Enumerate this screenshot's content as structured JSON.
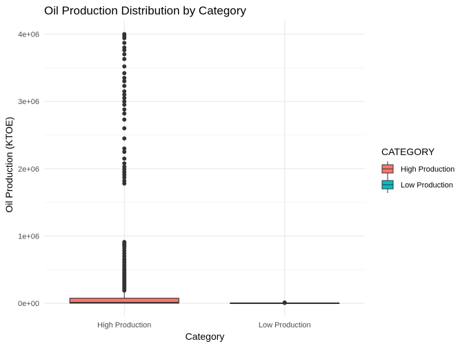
{
  "chart_data": {
    "type": "boxplot",
    "title": "Oil Production Distribution by Category",
    "xlabel": "Category",
    "ylabel": "Oil Production (KTOE)",
    "categories": [
      "High Production",
      "Low Production"
    ],
    "y_ticks": [
      0,
      1000000,
      2000000,
      3000000,
      4000000
    ],
    "y_tick_labels": [
      "0e+00",
      "1e+06",
      "2e+06",
      "3e+06",
      "4e+06"
    ],
    "ylim": [
      -200000,
      4200000
    ],
    "grid": true,
    "legend": {
      "title": "CATEGORY",
      "position": "right",
      "entries": [
        {
          "label": "High Production",
          "color": "#F8766D"
        },
        {
          "label": "Low Production",
          "color": "#00BFC4"
        }
      ]
    },
    "boxes": [
      {
        "category": "High Production",
        "color": "#F8766D",
        "min": 0,
        "q1": 2000,
        "median": 8000,
        "q3": 75000,
        "max": 180000,
        "outliers": [
          190000,
          210000,
          230000,
          250000,
          270000,
          290000,
          310000,
          330000,
          350000,
          370000,
          390000,
          410000,
          430000,
          450000,
          470000,
          490000,
          510000,
          540000,
          570000,
          600000,
          630000,
          660000,
          700000,
          740000,
          780000,
          820000,
          850000,
          870000,
          890000,
          910000,
          1780000,
          1820000,
          1870000,
          1910000,
          1950000,
          1990000,
          2030000,
          2080000,
          2150000,
          2250000,
          2300000,
          2450000,
          2600000,
          2730000,
          2820000,
          2880000,
          2950000,
          3000000,
          3050000,
          3100000,
          3150000,
          3230000,
          3300000,
          3350000,
          3420000,
          3520000,
          3630000,
          3700000,
          3760000,
          3800000,
          3870000,
          3940000,
          3970000,
          4000000
        ]
      },
      {
        "category": "Low Production",
        "color": "#00BFC4",
        "min": 0,
        "q1": 0,
        "median": 500,
        "q3": 1500,
        "max": 3000,
        "outliers": [
          5000,
          8000,
          12000
        ]
      }
    ]
  }
}
